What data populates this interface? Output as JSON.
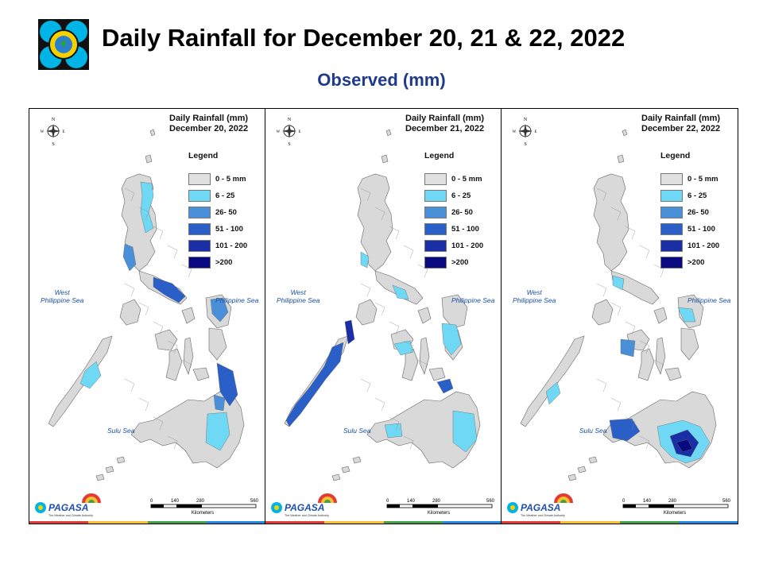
{
  "header": {
    "title": "Daily Rainfall for December 20, 21 & 22, 2022",
    "subtitle": "Observed (mm)"
  },
  "legend": {
    "title": "Legend",
    "items": [
      {
        "label": "0 - 5 mm",
        "color": "#e0e0e0"
      },
      {
        "label": "6 - 25",
        "color": "#6ed8f5"
      },
      {
        "label": "26- 50",
        "color": "#4a90d9"
      },
      {
        "label": "51 - 100",
        "color": "#2b5fc8"
      },
      {
        "label": "101 - 200",
        "color": "#1a2fa5"
      },
      {
        "label": ">200",
        "color": "#0a0a80"
      }
    ]
  },
  "seas": {
    "west": "West\nPhilippine Sea",
    "east": "Philippine Sea",
    "sulu": "Sulu Sea"
  },
  "scale": {
    "ticks": [
      "0",
      "140",
      "280",
      "560"
    ],
    "unit": "Kilometers"
  },
  "compass": {
    "n": "N",
    "s": "S",
    "e": "E",
    "w": "W"
  },
  "branding": {
    "logo_text": "PAGASA",
    "tagline": "The Weather and Climate Authority"
  },
  "panels": [
    {
      "title_line1": "Daily Rainfall (mm)",
      "title_line2": "December 20, 2022",
      "legend_sizes": [
        "0 - 5 mm",
        "6 - 25",
        "26- 50",
        "51 - 100",
        "101 - 200",
        ">200"
      ]
    },
    {
      "title_line1": "Daily Rainfall (mm)",
      "title_line2": "December 21, 2022",
      "legend_sizes": [
        "0 - 5 mm",
        "6 - 25",
        "26- 50",
        "51 - 100",
        "101 - 200",
        ">200"
      ]
    },
    {
      "title_line1": "Daily Rainfall (mm)",
      "title_line2": "December 22, 2022",
      "legend_sizes": [
        "0 - 5 mm",
        "6 - 25",
        "26- 50",
        "51 - 100",
        "101 - 200",
        ">200"
      ]
    }
  ],
  "colors": {
    "land": "#d9d9d9",
    "outline": "#666666",
    "sea_label": "#1a4fa0"
  }
}
